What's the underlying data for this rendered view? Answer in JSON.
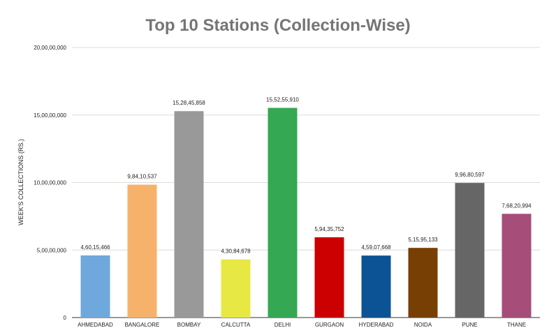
{
  "chart_data": {
    "type": "bar",
    "title": "Top 10 Stations (Collection-Wise)",
    "xlabel": "",
    "ylabel": "WEEK'S COLLECTIONS (RS.)",
    "ylim": [
      0,
      200000000
    ],
    "yticks": [
      0,
      50000000,
      100000000,
      150000000,
      200000000
    ],
    "ytick_labels": [
      "0",
      "5,00,00,000",
      "10,00,00,000",
      "15,00,00,000",
      "20,00,00,000"
    ],
    "grid": true,
    "legend": "none",
    "categories": [
      "AHMEDABAD",
      "BANGALORE",
      "BOMBAY",
      "CALCUTTA",
      "DELHI",
      "GURGAON",
      "HYDERABAD",
      "NOIDA",
      "PUNE",
      "THANE"
    ],
    "values": [
      46015466,
      98410537,
      152845858,
      43084678,
      155255910,
      59435752,
      45907668,
      51595133,
      99680597,
      76820994
    ],
    "value_labels": [
      "4,60,15,466",
      "9,84,10,537",
      "15,28,45,858",
      "4,30,84,678",
      "15,52,55,910",
      "5,94,35,752",
      "4,59,07,668",
      "5,15,95,133",
      "9,96,80,597",
      "7,68,20,994"
    ],
    "colors": [
      "#6fa8dc",
      "#f6b26b",
      "#999999",
      "#e8e845",
      "#34a853",
      "#cc0000",
      "#0b5394",
      "#783f04",
      "#666666",
      "#a64d79"
    ]
  }
}
